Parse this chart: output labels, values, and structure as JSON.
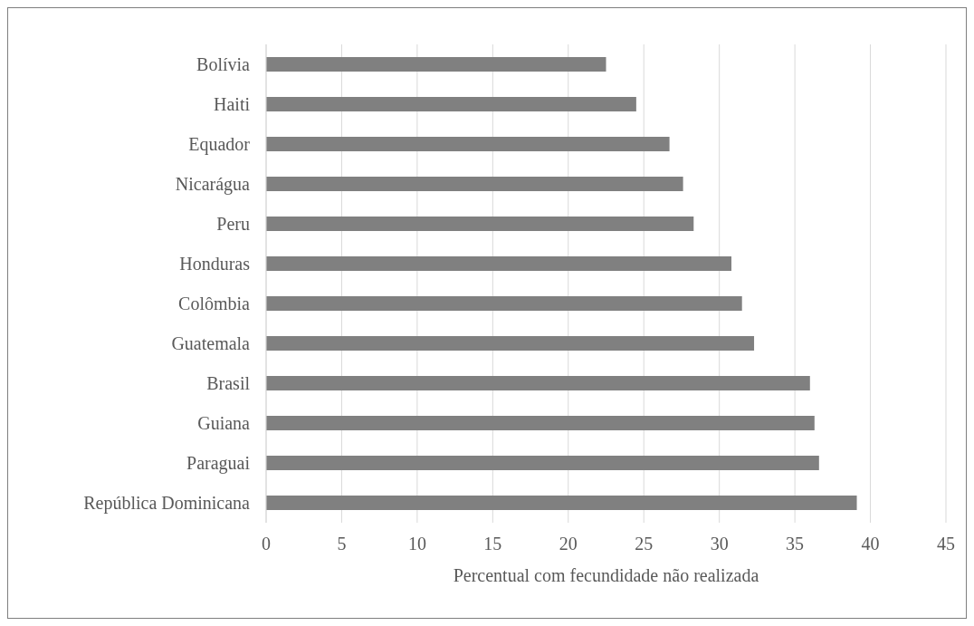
{
  "chart_data": {
    "type": "bar",
    "orientation": "horizontal",
    "xlabel": "Percentual com fecundidade não realizada",
    "categories": [
      "Bolívia",
      "Haiti",
      "Equador",
      "Nicarágua",
      "Peru",
      "Honduras",
      "Colômbia",
      "Guatemala",
      "Brasil",
      "Guiana",
      "Paraguai",
      "República Dominicana"
    ],
    "values": [
      22.5,
      24.5,
      26.7,
      27.6,
      28.3,
      30.8,
      31.5,
      32.3,
      36.0,
      36.3,
      36.6,
      39.1
    ],
    "color": "#808080",
    "xlim": [
      0,
      45
    ],
    "xticks": [
      0,
      5,
      10,
      15,
      20,
      25,
      30,
      35,
      40,
      45
    ],
    "grid": "x",
    "legend": false
  }
}
